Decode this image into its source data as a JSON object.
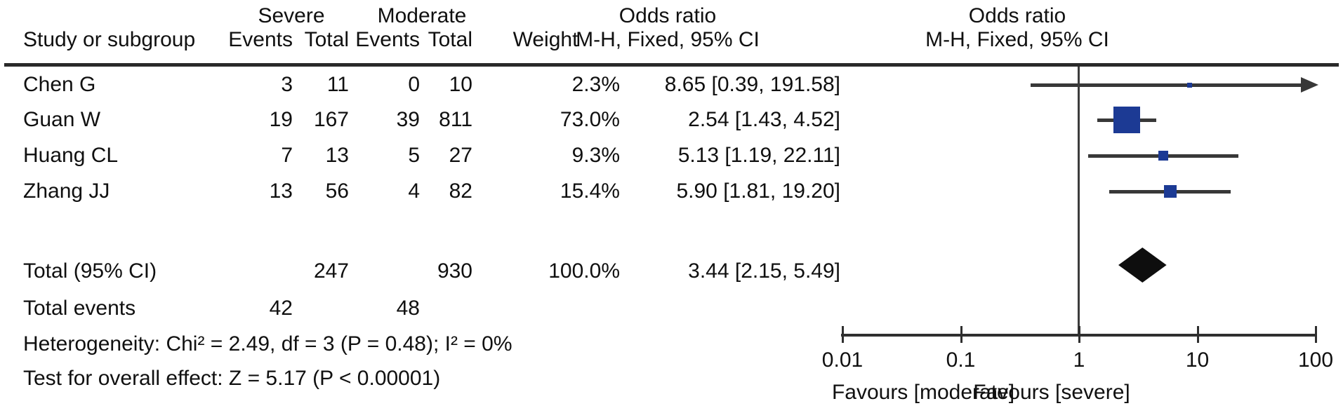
{
  "header": {
    "study_col": "Study or subgroup",
    "group1": "Severe",
    "group2": "Moderate",
    "events1": "Events",
    "total1": "Total",
    "events2": "Events",
    "total2": "Total",
    "weight": "Weight",
    "or_col_line1": "Odds ratio",
    "or_col_line2": "M-H, Fixed, 95% CI",
    "plot_col_line1": "Odds ratio",
    "plot_col_line2": "M-H, Fixed, 95% CI"
  },
  "chart_data": {
    "type": "forest",
    "effect_measure": "Odds ratio (M-H, Fixed, 95% CI)",
    "x_scale": "log10",
    "xlim": [
      0.01,
      100
    ],
    "x_ticks": [
      0.01,
      0.1,
      1,
      10,
      100
    ],
    "axis_tick_labels": [
      "0.01",
      "0.1",
      "1",
      "10",
      "100"
    ],
    "null_line": 1,
    "arrow_beyond": 100,
    "studies": [
      {
        "study": "Chen G",
        "severe_events": 3,
        "severe_total": 11,
        "moderate_events": 0,
        "moderate_total": 10,
        "weight_pct": 2.3,
        "weight_label": "2.3%",
        "or": 8.65,
        "ci_low": 0.39,
        "ci_high": 191.58,
        "or_label": "8.65 [0.39, 191.58]"
      },
      {
        "study": "Guan W",
        "severe_events": 19,
        "severe_total": 167,
        "moderate_events": 39,
        "moderate_total": 811,
        "weight_pct": 73.0,
        "weight_label": "73.0%",
        "or": 2.54,
        "ci_low": 1.43,
        "ci_high": 4.52,
        "or_label": "2.54 [1.43, 4.52]"
      },
      {
        "study": "Huang CL",
        "severe_events": 7,
        "severe_total": 13,
        "moderate_events": 5,
        "moderate_total": 27,
        "weight_pct": 9.3,
        "weight_label": "9.3%",
        "or": 5.13,
        "ci_low": 1.19,
        "ci_high": 22.11,
        "or_label": "5.13 [1.19, 22.11]"
      },
      {
        "study": "Zhang JJ",
        "severe_events": 13,
        "severe_total": 56,
        "moderate_events": 4,
        "moderate_total": 82,
        "weight_pct": 15.4,
        "weight_label": "15.4%",
        "or": 5.9,
        "ci_low": 1.81,
        "ci_high": 19.2,
        "or_label": "5.90 [1.81, 19.20]"
      }
    ],
    "total": {
      "label": "Total (95% CI)",
      "severe_total": "247",
      "moderate_total": "930",
      "weight_label": "100.0%",
      "or": 3.44,
      "ci_low": 2.15,
      "ci_high": 5.49,
      "or_label": "3.44 [2.15, 5.49]"
    },
    "total_events": {
      "label": "Total events",
      "severe": "42",
      "moderate": "48"
    },
    "heterogeneity": "Heterogeneity: Chi² = 2.49, df = 3 (P = 0.48); I² = 0%",
    "overall_effect": "Test for overall effect: Z = 5.17 (P < 0.00001)",
    "favours_left": "Favours [moderate]",
    "favours_right": "Favours [severe]",
    "colors": {
      "marker_blue": "#1c3a94",
      "line": "#383838",
      "diamond": "#0e0e0e",
      "text": "#101010"
    }
  }
}
